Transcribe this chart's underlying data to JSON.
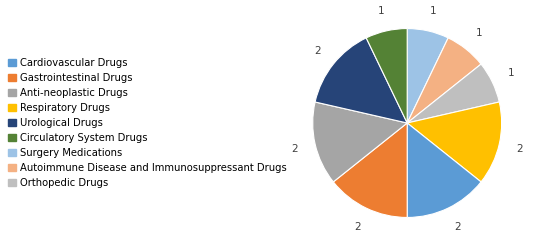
{
  "labels": [
    "Cardiovascular Drugs",
    "Gastrointestinal Drugs",
    "Anti-neoplastic Drugs",
    "Respiratory Drugs",
    "Urological Drugs",
    "Circulatory System Drugs",
    "Surgery Medications",
    "Autoimmune Disease and Immunosuppressant Drugs",
    "Orthopedic Drugs"
  ],
  "values": [
    2,
    2,
    2,
    2,
    2,
    1,
    1,
    1,
    1
  ],
  "colors": [
    "#5B9BD5",
    "#ED7D31",
    "#A5A5A5",
    "#FFC000",
    "#264478",
    "#548235",
    "#9DC3E6",
    "#F4B183",
    "#BFBFBF"
  ],
  "pie_order": [
    6,
    7,
    8,
    3,
    0,
    1,
    2,
    4,
    5
  ],
  "legend_fontsize": 7.2,
  "label_fontsize": 7.5,
  "startangle": 90,
  "figsize": [
    5.54,
    2.46
  ],
  "dpi": 100
}
